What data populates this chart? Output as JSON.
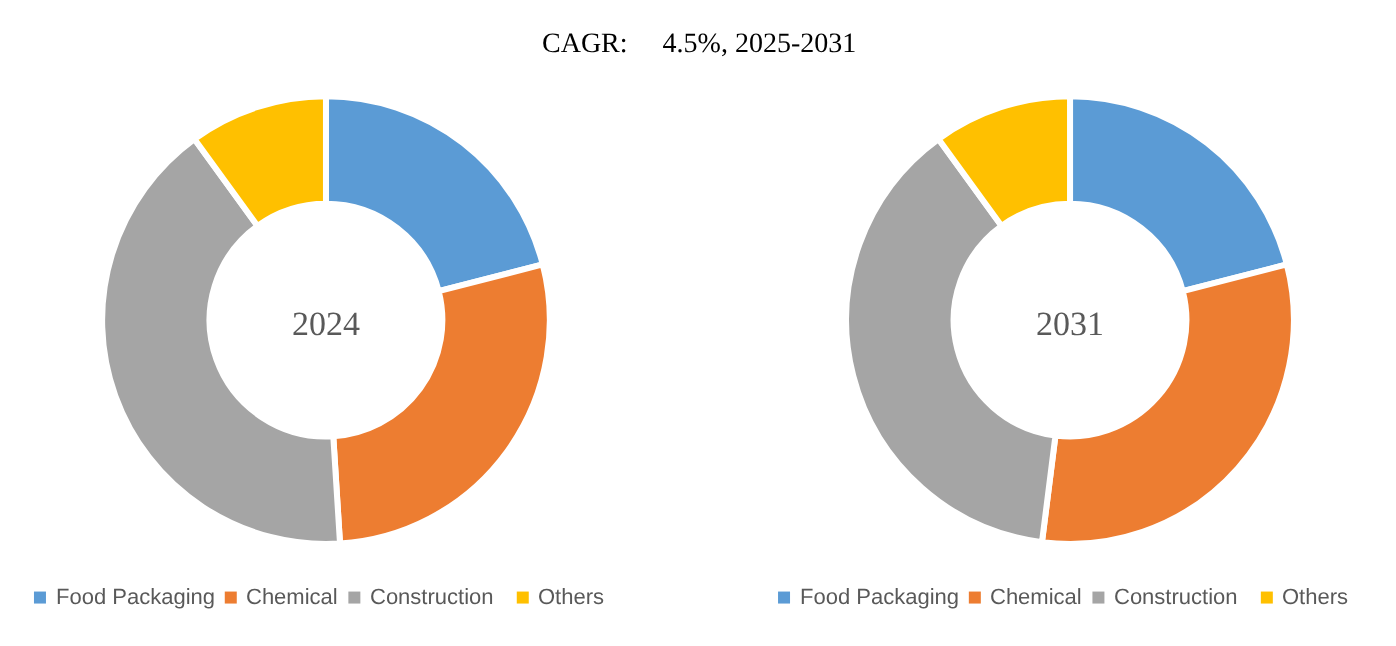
{
  "chart_data": [
    {
      "type": "donut",
      "title": "CAGR:     4.5%, 2025-2031",
      "annotations": [
        "2024"
      ],
      "categories": [
        "Food Packaging",
        "Chemical",
        "Construction",
        "Others"
      ],
      "values": [
        21,
        28,
        41,
        10
      ],
      "colors": [
        "#5b9bd5",
        "#ed7d31",
        "#a5a5a5",
        "#ffc000"
      ],
      "legend": "bottom"
    },
    {
      "type": "donut",
      "annotations": [
        "2031"
      ],
      "categories": [
        "Food Packaging",
        "Chemical",
        "Construction",
        "Others"
      ],
      "values": [
        21,
        31,
        38,
        10
      ],
      "colors": [
        "#5b9bd5",
        "#ed7d31",
        "#a5a5a5",
        "#ffc000"
      ],
      "legend": "bottom"
    }
  ]
}
